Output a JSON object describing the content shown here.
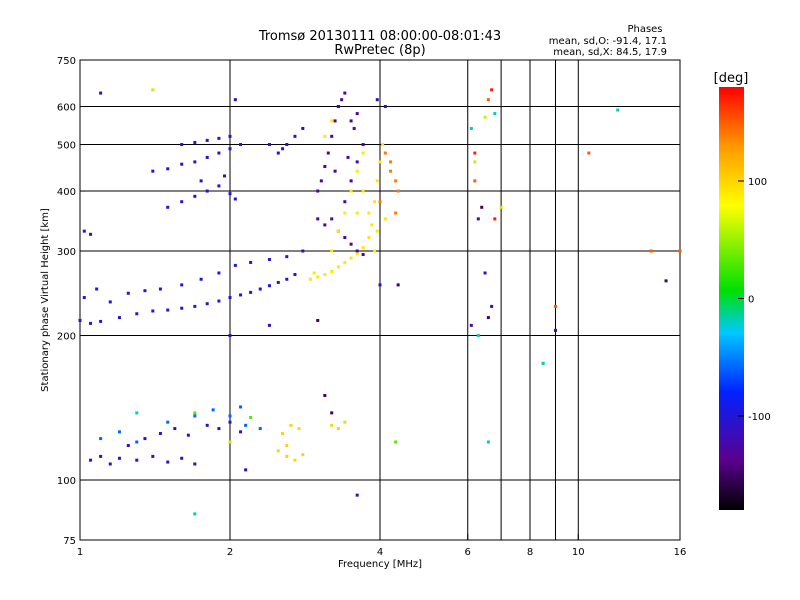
{
  "chart_data": {
    "type": "scatter",
    "title": "Tromsø 20130111 08:00:00-08:01:43",
    "subtitle": "RwPretec (8p)",
    "xlabel": "Frequency [MHz]",
    "ylabel": "Stationary phase Virtual Height [km]",
    "x_scale": "log",
    "y_scale": "log",
    "xlim": [
      1,
      16
    ],
    "ylim": [
      75,
      750
    ],
    "x_ticks": [
      1,
      2,
      4,
      6,
      8,
      10,
      16
    ],
    "x_tick_labels": [
      "1",
      "2",
      "4",
      "6",
      "8",
      "10",
      "16"
    ],
    "x_grid": [
      2,
      4,
      6,
      7,
      8,
      9,
      10
    ],
    "y_ticks": [
      75,
      100,
      200,
      300,
      400,
      500,
      600,
      750
    ],
    "y_tick_labels": [
      "75",
      "100",
      "200",
      "300",
      "400",
      "500",
      "600",
      "750"
    ],
    "y_grid": [
      100,
      200,
      300,
      400,
      500,
      600
    ],
    "grid": true,
    "stats_title": "Phases",
    "stats": [
      "mean, sd,O: -91.4, 17.1",
      "mean, sd,X:  84.5, 17.9"
    ],
    "colorbar": {
      "label": "[deg]",
      "range": [
        -180,
        180
      ],
      "tick_values": [
        100,
        0,
        -100
      ],
      "tick_labels": [
        "100",
        "0",
        "-100"
      ],
      "colormap": "rainbow (black-purple-blue-cyan-green-yellow-red)"
    },
    "series": [
      {
        "phase": -100,
        "points": [
          [
            1.0,
            215
          ],
          [
            1.05,
            212
          ],
          [
            1.1,
            214
          ],
          [
            1.2,
            218
          ],
          [
            1.3,
            222
          ],
          [
            1.4,
            225
          ],
          [
            1.5,
            226
          ],
          [
            1.6,
            228
          ],
          [
            1.7,
            230
          ],
          [
            1.8,
            233
          ],
          [
            1.9,
            236
          ],
          [
            2.0,
            240
          ],
          [
            2.1,
            243
          ],
          [
            2.2,
            246
          ],
          [
            2.3,
            250
          ],
          [
            2.4,
            254
          ],
          [
            2.5,
            258
          ],
          [
            2.6,
            262
          ],
          [
            2.7,
            268
          ],
          [
            1.02,
            240
          ],
          [
            1.08,
            250
          ],
          [
            1.15,
            235
          ],
          [
            1.25,
            245
          ],
          [
            1.35,
            248
          ],
          [
            1.45,
            250
          ],
          [
            1.6,
            255
          ],
          [
            1.75,
            262
          ],
          [
            1.9,
            270
          ],
          [
            2.05,
            280
          ],
          [
            2.2,
            284
          ],
          [
            2.4,
            288
          ],
          [
            2.6,
            292
          ],
          [
            2.8,
            300
          ],
          [
            1.02,
            330
          ],
          [
            1.05,
            325
          ]
        ]
      },
      {
        "phase": -110,
        "points": [
          [
            1.05,
            110
          ],
          [
            1.1,
            112
          ],
          [
            1.15,
            108
          ],
          [
            1.2,
            111
          ],
          [
            1.3,
            110
          ],
          [
            1.4,
            112
          ],
          [
            1.5,
            109
          ],
          [
            1.6,
            111
          ],
          [
            1.7,
            108
          ],
          [
            1.25,
            118
          ],
          [
            1.35,
            122
          ],
          [
            1.45,
            125
          ],
          [
            1.55,
            128
          ],
          [
            1.65,
            124
          ],
          [
            1.8,
            130
          ],
          [
            1.9,
            128
          ],
          [
            2.0,
            132
          ],
          [
            2.1,
            126
          ]
        ]
      },
      {
        "phase": -60,
        "points": [
          [
            1.1,
            122
          ],
          [
            1.2,
            126
          ],
          [
            1.3,
            120
          ],
          [
            1.5,
            132
          ],
          [
            1.7,
            136
          ],
          [
            1.85,
            140
          ],
          [
            2.0,
            136
          ],
          [
            2.1,
            142
          ],
          [
            2.15,
            130
          ],
          [
            2.3,
            128
          ]
        ]
      },
      {
        "phase": -105,
        "points": [
          [
            1.4,
            440
          ],
          [
            1.5,
            445
          ],
          [
            1.6,
            455
          ],
          [
            1.7,
            460
          ],
          [
            1.8,
            470
          ],
          [
            1.9,
            480
          ],
          [
            2.0,
            490
          ],
          [
            2.1,
            500
          ],
          [
            1.6,
            500
          ],
          [
            1.7,
            505
          ],
          [
            1.8,
            510
          ],
          [
            1.9,
            515
          ],
          [
            2.0,
            520
          ],
          [
            2.5,
            480
          ],
          [
            2.6,
            500
          ],
          [
            2.7,
            520
          ],
          [
            2.8,
            540
          ],
          [
            1.5,
            370
          ],
          [
            1.6,
            380
          ],
          [
            1.7,
            390
          ],
          [
            1.8,
            400
          ],
          [
            1.9,
            410
          ],
          [
            2.0,
            395
          ],
          [
            2.05,
            385
          ],
          [
            1.75,
            420
          ],
          [
            1.95,
            430
          ],
          [
            2.4,
            500
          ],
          [
            2.55,
            490
          ]
        ]
      },
      {
        "phase": -130,
        "points": [
          [
            3.0,
            400
          ],
          [
            3.05,
            420
          ],
          [
            3.1,
            450
          ],
          [
            3.15,
            480
          ],
          [
            3.2,
            520
          ],
          [
            3.25,
            560
          ],
          [
            3.3,
            600
          ],
          [
            3.2,
            350
          ],
          [
            3.3,
            330
          ],
          [
            3.4,
            320
          ],
          [
            3.5,
            310
          ],
          [
            3.6,
            300
          ],
          [
            3.7,
            295
          ],
          [
            3.4,
            380
          ],
          [
            3.5,
            420
          ],
          [
            3.6,
            460
          ],
          [
            3.7,
            500
          ],
          [
            3.3,
            600
          ],
          [
            3.35,
            620
          ],
          [
            3.4,
            640
          ],
          [
            3.0,
            350
          ],
          [
            3.1,
            340
          ],
          [
            3.5,
            560
          ],
          [
            3.6,
            580
          ],
          [
            3.55,
            540
          ],
          [
            3.45,
            470
          ],
          [
            3.25,
            440
          ]
        ]
      },
      {
        "phase": 90,
        "points": [
          [
            3.0,
            265
          ],
          [
            3.1,
            268
          ],
          [
            3.2,
            272
          ],
          [
            3.3,
            278
          ],
          [
            3.4,
            284
          ],
          [
            3.5,
            290
          ],
          [
            3.6,
            296
          ],
          [
            3.7,
            305
          ],
          [
            3.8,
            320
          ],
          [
            3.85,
            340
          ],
          [
            3.9,
            380
          ],
          [
            3.95,
            420
          ],
          [
            4.0,
            460
          ],
          [
            4.05,
            500
          ],
          [
            3.8,
            360
          ],
          [
            3.9,
            300
          ],
          [
            3.95,
            330
          ],
          [
            4.1,
            350
          ],
          [
            3.2,
            300
          ],
          [
            3.3,
            330
          ],
          [
            3.4,
            360
          ],
          [
            3.5,
            400
          ],
          [
            3.6,
            440
          ],
          [
            3.7,
            480
          ],
          [
            3.6,
            360
          ],
          [
            3.7,
            400
          ],
          [
            3.1,
            520
          ],
          [
            3.2,
            560
          ],
          [
            2.9,
            262
          ],
          [
            2.95,
            270
          ]
        ]
      },
      {
        "phase": 100,
        "points": [
          [
            2.5,
            115
          ],
          [
            2.6,
            112
          ],
          [
            2.7,
            110
          ],
          [
            2.8,
            113
          ],
          [
            2.55,
            125
          ],
          [
            2.65,
            130
          ],
          [
            2.75,
            128
          ],
          [
            2.6,
            118
          ],
          [
            3.2,
            130
          ],
          [
            3.3,
            128
          ],
          [
            3.4,
            132
          ]
        ]
      },
      {
        "phase": 140,
        "points": [
          [
            4.1,
            480
          ],
          [
            4.2,
            460
          ],
          [
            4.3,
            420
          ],
          [
            4.2,
            440
          ],
          [
            4.0,
            380
          ],
          [
            4.35,
            400
          ],
          [
            4.3,
            360
          ]
        ]
      },
      {
        "phase": 170,
        "points": [
          [
            6.2,
            480
          ],
          [
            6.7,
            650
          ],
          [
            6.8,
            350
          ]
        ]
      },
      {
        "phase": 150,
        "points": [
          [
            6.2,
            420
          ],
          [
            6.6,
            620
          ],
          [
            9.0,
            230
          ],
          [
            10.5,
            480
          ],
          [
            14.0,
            300
          ],
          [
            16.0,
            300
          ]
        ]
      },
      {
        "phase": 60,
        "points": [
          [
            1.4,
            650
          ],
          [
            6.2,
            460
          ],
          [
            6.5,
            570
          ],
          [
            7.0,
            370
          ],
          [
            2.0,
            120
          ]
        ]
      },
      {
        "phase": 30,
        "points": [
          [
            4.3,
            120
          ],
          [
            8.5,
            175
          ],
          [
            1.7,
            138
          ],
          [
            2.2,
            135
          ]
        ]
      },
      {
        "phase": -20,
        "points": [
          [
            6.1,
            540
          ],
          [
            6.6,
            120
          ],
          [
            8.5,
            175
          ],
          [
            12.0,
            590
          ],
          [
            1.7,
            85
          ],
          [
            6.3,
            200
          ],
          [
            1.3,
            138
          ],
          [
            6.8,
            580
          ]
        ]
      },
      {
        "phase": -115,
        "points": [
          [
            1.1,
            640
          ],
          [
            2.05,
            620
          ],
          [
            3.95,
            620
          ],
          [
            4.1,
            600
          ],
          [
            2.0,
            200
          ],
          [
            2.4,
            210
          ],
          [
            6.3,
            350
          ],
          [
            6.7,
            230
          ],
          [
            9.0,
            205
          ],
          [
            6.1,
            210
          ],
          [
            3.6,
            93
          ],
          [
            2.15,
            105
          ],
          [
            6.5,
            270
          ],
          [
            4.0,
            255
          ]
        ]
      },
      {
        "phase": -150,
        "points": [
          [
            4.35,
            255
          ],
          [
            6.4,
            370
          ],
          [
            15.0,
            260
          ],
          [
            3.0,
            215
          ],
          [
            6.6,
            218
          ],
          [
            3.1,
            150
          ],
          [
            3.2,
            138
          ]
        ]
      }
    ]
  }
}
